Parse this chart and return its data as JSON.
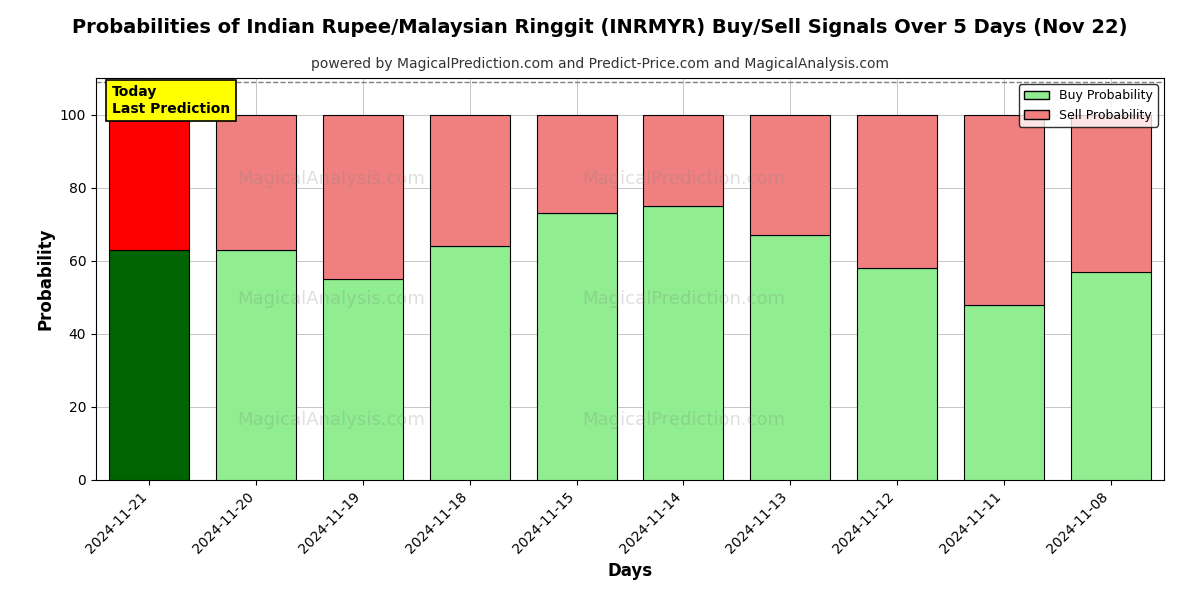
{
  "title": "Probabilities of Indian Rupee/Malaysian Ringgit (INRMYR) Buy/Sell Signals Over 5 Days (Nov 22)",
  "subtitle": "powered by MagicalPrediction.com and Predict-Price.com and MagicalAnalysis.com",
  "xlabel": "Days",
  "ylabel": "Probability",
  "dates": [
    "2024-11-21",
    "2024-11-20",
    "2024-11-19",
    "2024-11-18",
    "2024-11-15",
    "2024-11-14",
    "2024-11-13",
    "2024-11-12",
    "2024-11-11",
    "2024-11-08"
  ],
  "buy_values": [
    63,
    63,
    55,
    64,
    73,
    75,
    67,
    58,
    48,
    57
  ],
  "sell_values": [
    37,
    37,
    45,
    36,
    27,
    25,
    33,
    42,
    52,
    43
  ],
  "today_bar_buy_color": "#006400",
  "today_bar_sell_color": "#FF0000",
  "other_bar_buy_color": "#90EE90",
  "other_bar_sell_color": "#F08080",
  "bar_edge_color": "#000000",
  "ylim": [
    0,
    110
  ],
  "yticks": [
    0,
    20,
    40,
    60,
    80,
    100
  ],
  "dashed_line_y": 109,
  "legend_buy_label": "Buy Probability",
  "legend_sell_label": "Sell Probability",
  "today_label_text": "Today\nLast Prediction",
  "background_color": "#ffffff",
  "grid_color": "#bbbbbb",
  "title_fontsize": 14,
  "subtitle_fontsize": 10,
  "axis_label_fontsize": 12,
  "tick_fontsize": 10,
  "bar_width": 0.75
}
